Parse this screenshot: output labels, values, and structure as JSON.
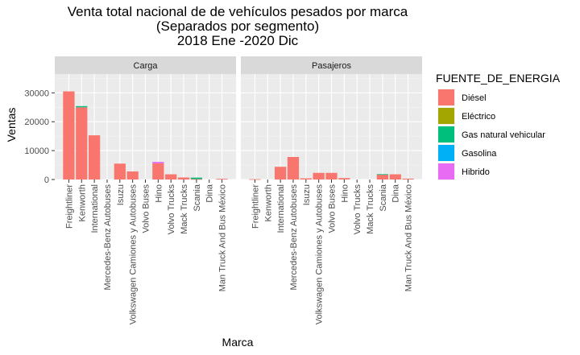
{
  "chart_data": {
    "type": "bar",
    "title_lines": [
      "Venta total nacional de de vehículos pesados por marca",
      "(Separados por segmento)",
      "2018 Ene -2020 Dic"
    ],
    "xlabel": "Marca",
    "ylabel": "Ventas",
    "ylim": [
      0,
      36500
    ],
    "yticks": [
      0,
      10000,
      20000,
      30000
    ],
    "ytick_labels": [
      "0",
      "10000",
      "20000",
      "30000"
    ],
    "categories": [
      "Freightliner",
      "Kenworth",
      "International",
      "Mercedes-Benz Autobuses",
      "Isuzu",
      "Volkswagen Camiones y Autobuses",
      "Volvo Buses",
      "Hino",
      "Volvo Trucks",
      "Mack Trucks",
      "Scania",
      "Dina",
      "Man Truck And Bus México"
    ],
    "legend": {
      "title": "FUENTE_DE_ENERGIA",
      "position": "right",
      "items": [
        {
          "label": "Diésel",
          "color": "#F8766D"
        },
        {
          "label": "Eléctrico",
          "color": "#A3A500"
        },
        {
          "label": "Gas natural vehicular",
          "color": "#00BF7D"
        },
        {
          "label": "Gasolina",
          "color": "#00B0F6"
        },
        {
          "label": "Hibrido",
          "color": "#E76BF3"
        }
      ]
    },
    "panels": [
      {
        "name": "Carga",
        "series": [
          {
            "name": "Diésel",
            "values": [
              30500,
              25000,
              15300,
              0,
              5500,
              2800,
              0,
              5600,
              1800,
              700,
              150,
              0,
              250
            ]
          },
          {
            "name": "Eléctrico",
            "values": [
              0,
              0,
              0,
              0,
              0,
              0,
              0,
              0,
              0,
              0,
              0,
              0,
              0
            ]
          },
          {
            "name": "Gas natural vehicular",
            "values": [
              0,
              400,
              0,
              0,
              0,
              0,
              0,
              0,
              0,
              0,
              500,
              0,
              0
            ]
          },
          {
            "name": "Gasolina",
            "values": [
              0,
              0,
              0,
              0,
              0,
              0,
              0,
              0,
              0,
              0,
              0,
              0,
              0
            ]
          },
          {
            "name": "Hibrido",
            "values": [
              0,
              0,
              0,
              0,
              0,
              0,
              0,
              500,
              0,
              0,
              0,
              0,
              0
            ]
          }
        ]
      },
      {
        "name": "Pasajeros",
        "series": [
          {
            "name": "Diésel",
            "values": [
              100,
              0,
              4400,
              7800,
              400,
              2300,
              2300,
              500,
              0,
              0,
              1700,
              1800,
              300
            ]
          },
          {
            "name": "Eléctrico",
            "values": [
              0,
              0,
              0,
              0,
              0,
              0,
              0,
              0,
              0,
              0,
              0,
              0,
              0
            ]
          },
          {
            "name": "Gas natural vehicular",
            "values": [
              0,
              0,
              0,
              0,
              0,
              0,
              0,
              0,
              0,
              0,
              150,
              0,
              0
            ]
          },
          {
            "name": "Gasolina",
            "values": [
              0,
              0,
              0,
              0,
              0,
              0,
              0,
              0,
              0,
              0,
              0,
              0,
              0
            ]
          },
          {
            "name": "Hibrido",
            "values": [
              0,
              0,
              0,
              0,
              0,
              0,
              0,
              0,
              0,
              0,
              0,
              0,
              0
            ]
          }
        ]
      }
    ]
  }
}
